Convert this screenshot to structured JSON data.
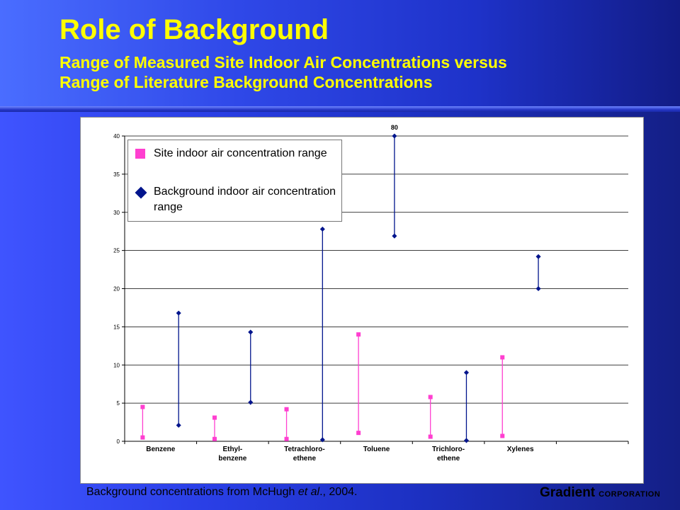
{
  "slide": {
    "title": "Role of Background",
    "subtitle_line1": "Range of Measured Site Indoor Air Concentrations versus",
    "subtitle_line2": "Range of Literature Background Concentrations",
    "footnote_pre": "Background concentrations from McHugh ",
    "footnote_em": "et al",
    "footnote_post": "., 2004.",
    "brand_main": "Gradient",
    "brand_sub": "CORPORATION"
  },
  "colors": {
    "site": "#ff3fd0",
    "background": "#00148c",
    "title": "#ffff00"
  },
  "chart_data": {
    "type": "range",
    "ylim": [
      0,
      40
    ],
    "yticks": [
      0,
      5,
      10,
      15,
      20,
      25,
      30,
      35,
      40
    ],
    "grid": true,
    "legend_position": "top-left",
    "categories": [
      [
        "Benzene"
      ],
      [
        "Ethyl-",
        "benzene"
      ],
      [
        "Tetrachloro-",
        "ethene"
      ],
      [
        "Toluene"
      ],
      [
        "Trichloro-",
        "ethene"
      ],
      [
        "Xylenes"
      ]
    ],
    "series": [
      {
        "name": "Site indoor air concentration range",
        "marker": "square",
        "ranges": [
          [
            0.5,
            4.5
          ],
          [
            0.3,
            3.1
          ],
          [
            0.3,
            4.2
          ],
          [
            1.1,
            14.0
          ],
          [
            0.6,
            5.8
          ],
          [
            0.7,
            11.0
          ]
        ]
      },
      {
        "name": "Background  indoor air concentration range",
        "marker": "diamond",
        "ranges": [
          [
            2.1,
            16.8
          ],
          [
            5.1,
            14.3
          ],
          [
            0.2,
            27.8
          ],
          [
            26.9,
            80
          ],
          [
            0.1,
            9.0
          ],
          [
            20.0,
            24.2
          ]
        ]
      }
    ],
    "annotations": [
      {
        "text": "80"
      }
    ]
  }
}
